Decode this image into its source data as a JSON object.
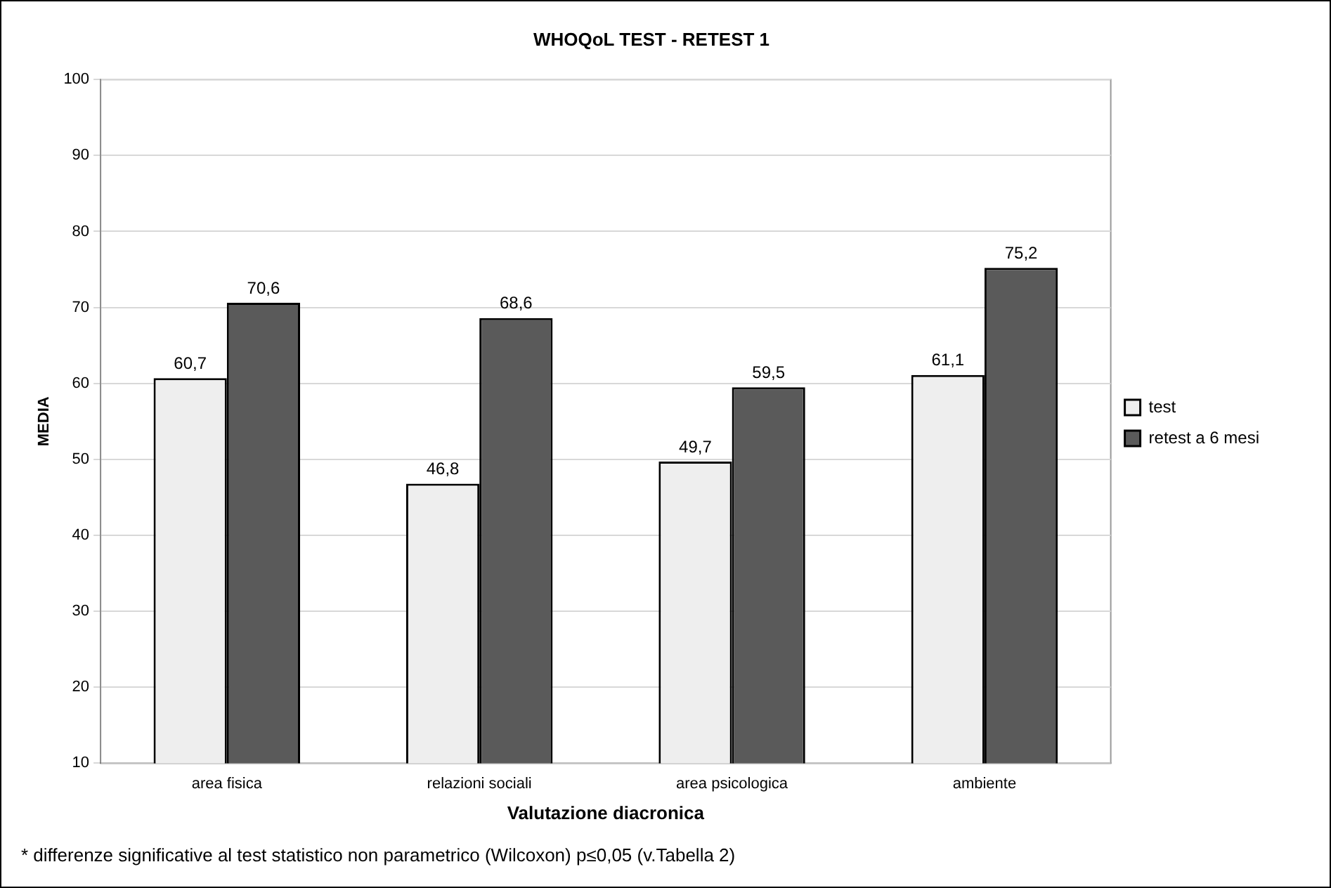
{
  "chart_data": {
    "type": "bar",
    "title": "WHOQoL TEST - RETEST 1",
    "xlabel": "Valutazione diacronica",
    "ylabel": "MEDIA",
    "categories": [
      "area fisica",
      "relazioni sociali",
      "area psicologica",
      "ambiente"
    ],
    "series": [
      {
        "name": "test",
        "color": "#eeeeee",
        "values": [
          60.7,
          46.8,
          49.7,
          61.1
        ],
        "value_labels": [
          "60,7",
          "46,8",
          "49,7",
          "61,1"
        ]
      },
      {
        "name": "retest a 6 mesi",
        "color": "#5a5a5a",
        "values": [
          70.6,
          68.6,
          59.5,
          75.2
        ],
        "value_labels": [
          "70,6",
          "68,6",
          "59,5",
          "75,2"
        ]
      }
    ],
    "ylim": [
      10,
      100
    ],
    "yticks": [
      10,
      20,
      30,
      40,
      50,
      60,
      70,
      80,
      90,
      100
    ],
    "grid": "y",
    "legend": "right",
    "annotations": [
      "* differenze significative al test statistico non parametrico (Wilcoxon) p≤0,05 (v.Tabella 2)"
    ]
  }
}
